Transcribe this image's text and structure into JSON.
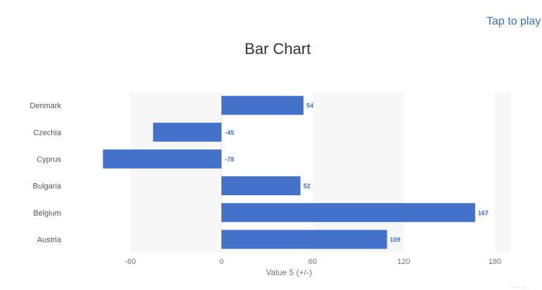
{
  "header": {
    "tap_to_play": "Tap to play"
  },
  "chart_data": {
    "type": "bar",
    "orientation": "horizontal",
    "title": "Bar Chart",
    "xlabel": "Value 5 (+/-)",
    "ylabel": "",
    "categories": [
      "Denmark",
      "Czechia",
      "Cyprus",
      "Bulgaria",
      "Belgium",
      "Austria"
    ],
    "values": [
      54,
      -45,
      -78,
      52,
      167,
      109
    ],
    "value_labels": [
      "54",
      "-45",
      "-78",
      "52",
      "167",
      "109"
    ],
    "xlim": [
      -80,
      190
    ],
    "xticks": [
      -60,
      0,
      60,
      120,
      180
    ],
    "xtick_labels": [
      "-60",
      "0",
      "60",
      "120",
      "180"
    ],
    "grid": "alternating-bands",
    "legend": "none",
    "bar_color": "#4472ca",
    "label_color": "#4472ca",
    "band_color": "#f7f7f7"
  }
}
